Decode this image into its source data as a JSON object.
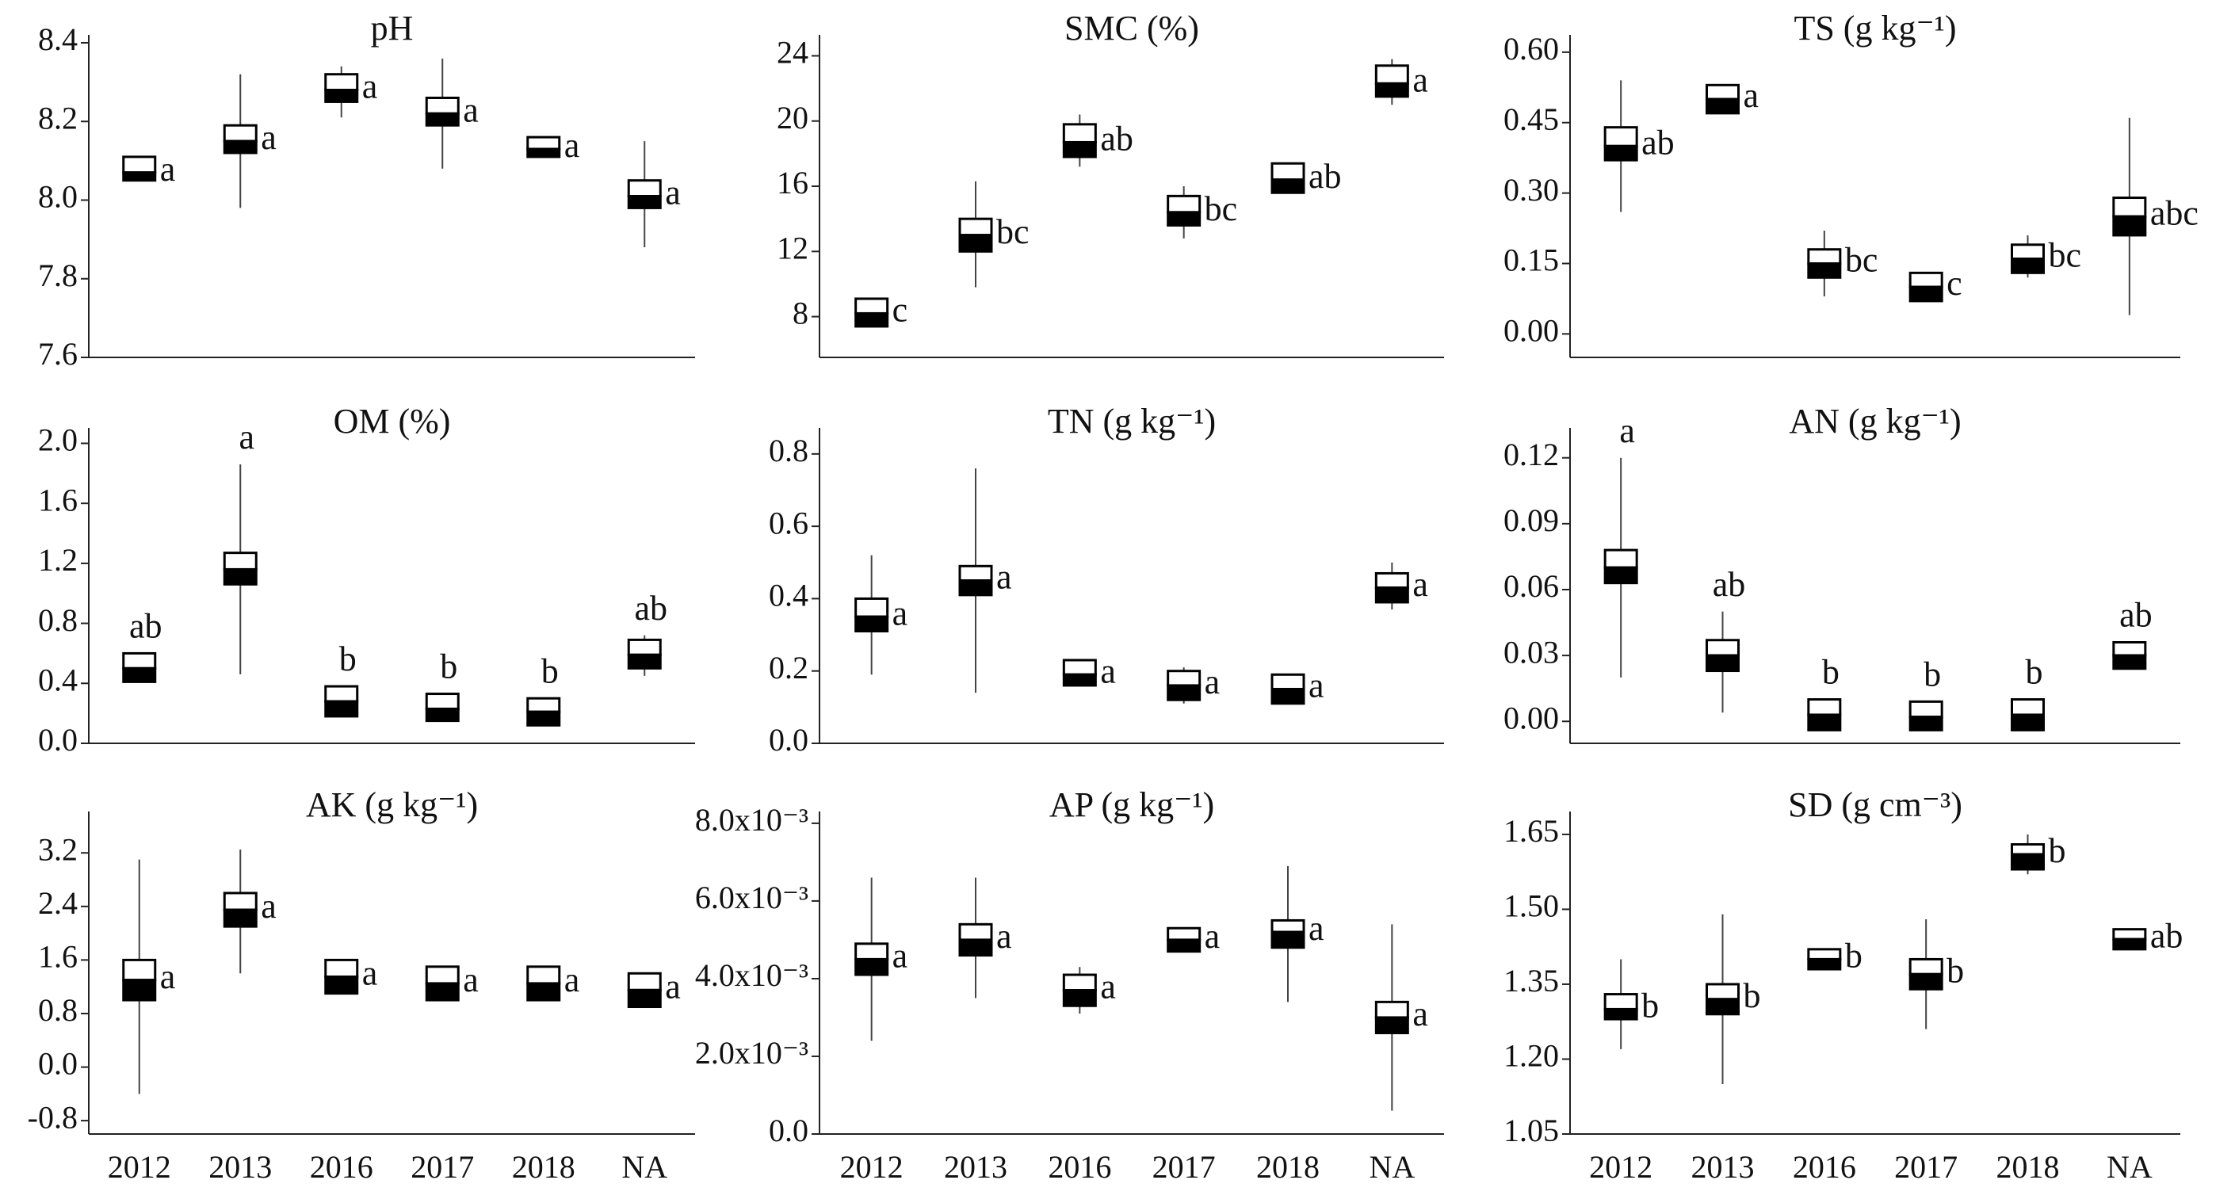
{
  "chart_data": [
    {
      "type": "box",
      "title": "pH",
      "letter_position": "right",
      "ylim": [
        7.6,
        8.4
      ],
      "yticks": [
        7.6,
        7.8,
        {
          "value": 8,
          "label": "8.0"
        },
        8.2,
        8.4
      ],
      "values": [
        8.07,
        8.15,
        8.28,
        8.22,
        8.13,
        8.01
      ],
      "box_low": [
        8.05,
        8.12,
        8.25,
        8.19,
        8.11,
        7.98
      ],
      "box_high": [
        8.11,
        8.19,
        8.32,
        8.26,
        8.16,
        8.05
      ],
      "whisker_low": [
        null,
        7.98,
        8.21,
        8.08,
        null,
        7.88
      ],
      "whisker_high": [
        null,
        8.32,
        8.34,
        8.36,
        null,
        8.15
      ],
      "letters": [
        "a",
        "a",
        "a",
        "a",
        "a",
        "a"
      ]
    },
    {
      "type": "box",
      "title": "SMC (%)",
      "letter_position": "right",
      "ylim": [
        5.5,
        24.8
      ],
      "yticks": [
        8,
        12,
        16,
        20,
        24
      ],
      "values": [
        8.2,
        13.0,
        18.7,
        14.4,
        16.4,
        22.3
      ],
      "box_low": [
        7.4,
        12.0,
        17.8,
        13.6,
        15.6,
        21.5
      ],
      "box_high": [
        9.1,
        14.0,
        19.8,
        15.4,
        17.4,
        23.4
      ],
      "whisker_low": [
        null,
        9.8,
        17.2,
        12.8,
        null,
        21.0
      ],
      "whisker_high": [
        null,
        16.3,
        20.4,
        16.0,
        null,
        23.8
      ],
      "letters": [
        "c",
        "bc",
        "ab",
        "bc",
        "ab",
        "a"
      ]
    },
    {
      "type": "box",
      "title": "TS (g kg⁻¹)",
      "letter_position": "right",
      "ylim": [
        -0.05,
        0.62
      ],
      "yticks": [
        {
          "value": 0,
          "label": "0.00"
        },
        0.15,
        {
          "value": 0.3,
          "label": "0.30"
        },
        0.45,
        {
          "value": 0.6,
          "label": "0.60"
        }
      ],
      "values": [
        0.4,
        0.5,
        0.15,
        0.1,
        0.16,
        0.25
      ],
      "box_low": [
        0.37,
        0.47,
        0.12,
        0.07,
        0.13,
        0.21
      ],
      "box_high": [
        0.44,
        0.53,
        0.18,
        0.13,
        0.19,
        0.29
      ],
      "whisker_low": [
        0.26,
        null,
        0.08,
        null,
        0.12,
        0.04
      ],
      "whisker_high": [
        0.54,
        null,
        0.22,
        null,
        0.21,
        0.46
      ],
      "letters": [
        "ab",
        "a",
        "bc",
        "c",
        "bc",
        "abc"
      ]
    },
    {
      "type": "box",
      "title": "OM (%)",
      "letter_position": "above",
      "ylim": [
        0,
        2.05
      ],
      "yticks": [
        {
          "value": 0,
          "label": "0.0"
        },
        0.4,
        0.8,
        1.2,
        1.6,
        {
          "value": 2,
          "label": "2.0"
        }
      ],
      "values": [
        0.5,
        1.16,
        0.28,
        0.23,
        0.21,
        0.59
      ],
      "box_low": [
        0.41,
        1.06,
        0.18,
        0.15,
        0.12,
        0.5
      ],
      "box_high": [
        0.6,
        1.27,
        0.38,
        0.33,
        0.3,
        0.69
      ],
      "whisker_low": [
        null,
        0.46,
        null,
        null,
        null,
        0.45
      ],
      "whisker_high": [
        null,
        1.86,
        null,
        null,
        null,
        0.72
      ],
      "letters": [
        "ab",
        "a",
        "b",
        "b",
        "b",
        "ab"
      ]
    },
    {
      "type": "box",
      "title": "TN (g kg⁻¹)",
      "letter_position": "right",
      "ylim": [
        0,
        0.85
      ],
      "yticks": [
        {
          "value": 0,
          "label": "0.0"
        },
        0.2,
        0.4,
        0.6,
        0.8
      ],
      "values": [
        0.35,
        0.45,
        0.19,
        0.16,
        0.15,
        0.43
      ],
      "box_low": [
        0.31,
        0.41,
        0.16,
        0.12,
        0.11,
        0.39
      ],
      "box_high": [
        0.4,
        0.49,
        0.23,
        0.2,
        0.19,
        0.47
      ],
      "whisker_low": [
        0.19,
        0.14,
        null,
        0.11,
        null,
        0.37
      ],
      "whisker_high": [
        0.52,
        0.76,
        null,
        0.21,
        null,
        0.5
      ],
      "letters": [
        "a",
        "a",
        "a",
        "a",
        "a",
        "a"
      ]
    },
    {
      "type": "box",
      "title": "AN (g kg⁻¹)",
      "letter_position": "above",
      "ylim": [
        -0.01,
        0.13
      ],
      "yticks": [
        {
          "value": 0,
          "label": "0.00"
        },
        0.03,
        0.06,
        0.09,
        0.12
      ],
      "values": [
        0.07,
        0.03,
        0.003,
        0.002,
        0.003,
        0.03
      ],
      "box_low": [
        0.063,
        0.023,
        -0.004,
        -0.004,
        -0.004,
        0.024
      ],
      "box_high": [
        0.078,
        0.037,
        0.01,
        0.009,
        0.01,
        0.036
      ],
      "whisker_low": [
        0.02,
        0.004,
        null,
        null,
        null,
        null
      ],
      "whisker_high": [
        0.12,
        0.05,
        null,
        null,
        null,
        null
      ],
      "letters": [
        "a",
        "ab",
        "b",
        "b",
        "b",
        "ab"
      ]
    },
    {
      "type": "box",
      "title": "AK (g kg⁻¹)",
      "letter_position": "right",
      "categories": [
        "2012",
        "2013",
        "2016",
        "2017",
        "2018",
        "NA"
      ],
      "ylim": [
        -1.0,
        3.7
      ],
      "yticks": [
        -0.8,
        {
          "value": 0,
          "label": "0.0"
        },
        0.8,
        1.6,
        2.4,
        3.2
      ],
      "values": [
        1.3,
        2.35,
        1.35,
        1.25,
        1.25,
        1.15
      ],
      "box_low": [
        1.0,
        2.1,
        1.1,
        1.0,
        1.0,
        0.9
      ],
      "box_high": [
        1.6,
        2.6,
        1.6,
        1.5,
        1.5,
        1.4
      ],
      "whisker_low": [
        -0.4,
        1.4,
        null,
        null,
        null,
        null
      ],
      "whisker_high": [
        3.1,
        3.25,
        null,
        null,
        null,
        null
      ],
      "letters": [
        "a",
        "a",
        "a",
        "a",
        "a",
        "a"
      ]
    },
    {
      "type": "box",
      "title": "AP (g kg⁻¹)",
      "letter_position": "right",
      "categories": [
        "2012",
        "2013",
        "2016",
        "2017",
        "2018",
        "NA"
      ],
      "ylim": [
        0,
        0.0081
      ],
      "yticks": [
        {
          "value": 0,
          "label": "0.0"
        },
        {
          "value": 0.002,
          "label": "2.0x10⁻³"
        },
        {
          "value": 0.004,
          "label": "4.0x10⁻³"
        },
        {
          "value": 0.006,
          "label": "6.0x10⁻³"
        },
        {
          "value": 0.008,
          "label": "8.0x10⁻³"
        }
      ],
      "values": [
        0.0045,
        0.005,
        0.0037,
        0.005,
        0.0052,
        0.003
      ],
      "box_low": [
        0.0041,
        0.0046,
        0.0033,
        0.0047,
        0.0048,
        0.0026
      ],
      "box_high": [
        0.0049,
        0.0054,
        0.0041,
        0.0053,
        0.0055,
        0.0034
      ],
      "whisker_low": [
        0.0024,
        0.0035,
        0.0031,
        null,
        0.0034,
        0.0006
      ],
      "whisker_high": [
        0.0066,
        0.0066,
        0.0043,
        null,
        0.0069,
        0.0054
      ],
      "letters": [
        "a",
        "a",
        "a",
        "a",
        "a",
        "a"
      ]
    },
    {
      "type": "box",
      "title": "SD (g cm⁻³)",
      "letter_position": "right",
      "categories": [
        "2012",
        "2013",
        "2016",
        "2017",
        "2018",
        "NA"
      ],
      "ylim": [
        1.05,
        1.68
      ],
      "yticks": [
        1.05,
        {
          "value": 1.2,
          "label": "1.20"
        },
        1.35,
        {
          "value": 1.5,
          "label": "1.50"
        },
        1.65
      ],
      "values": [
        1.3,
        1.32,
        1.4,
        1.37,
        1.61,
        1.44
      ],
      "box_low": [
        1.28,
        1.29,
        1.38,
        1.34,
        1.58,
        1.42
      ],
      "box_high": [
        1.33,
        1.35,
        1.42,
        1.4,
        1.63,
        1.46
      ],
      "whisker_low": [
        1.22,
        1.15,
        null,
        1.26,
        1.57,
        null
      ],
      "whisker_high": [
        1.4,
        1.49,
        null,
        1.48,
        1.65,
        null
      ],
      "letters": [
        "b",
        "b",
        "b",
        "b",
        "b",
        "ab"
      ]
    }
  ]
}
